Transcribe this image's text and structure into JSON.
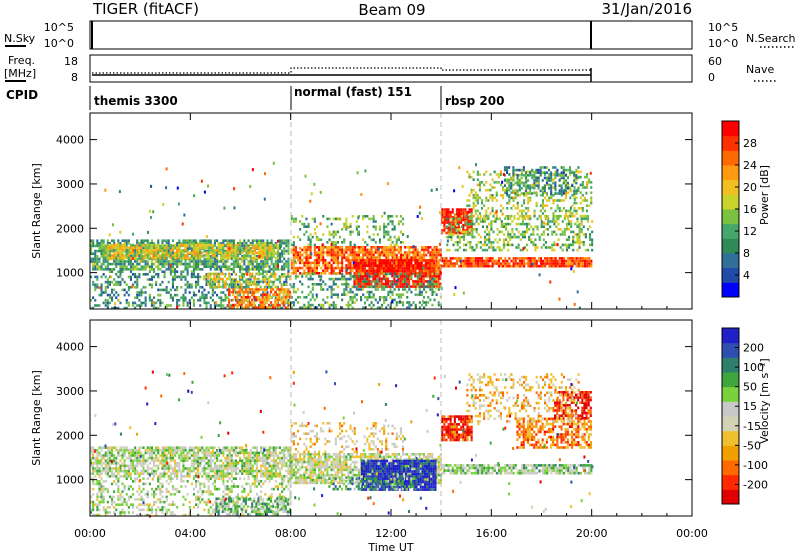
{
  "header": {
    "radar": "TIGER (fitACF)",
    "beam": "Beam 09",
    "date": "31/Jan/2016"
  },
  "strips": {
    "nsky_label": "N.Sky",
    "nsky_ticks": [
      "10^5",
      "10^0"
    ],
    "nsearch_label": "N.Search",
    "nsearch_ticks": [
      "10^5",
      "10^0"
    ],
    "freq_label_line1": "Freq.",
    "freq_label_line2": "[MHz]",
    "freq_ticks": [
      "18",
      "8"
    ],
    "nave_label": "Nave",
    "nave_ticks": [
      "60",
      "0"
    ],
    "cpid_label": "CPID"
  },
  "cpid_segments": [
    {
      "label": "themis 3300",
      "start_hour": 0
    },
    {
      "label": "normal (fast) 151",
      "start_hour": 8
    },
    {
      "label": "rbsp 200",
      "start_hour": 14
    }
  ],
  "x_axis": {
    "label": "Time UT",
    "ticks": [
      "00:00",
      "04:00",
      "08:00",
      "12:00",
      "16:00",
      "20:00",
      "00:00"
    ],
    "range_hours": [
      0,
      24
    ],
    "data_end_hour": 20
  },
  "colors": {
    "power": [
      "#0000ff",
      "#1f4aa8",
      "#2f6f99",
      "#2e8b57",
      "#44a86a",
      "#7ac142",
      "#c8d42a",
      "#f0c020",
      "#ff9a10",
      "#ff6a00",
      "#ff3000",
      "#ff0000"
    ],
    "velocity": [
      "#2020c8",
      "#2f4fb0",
      "#2f7f6f",
      "#3da63d",
      "#7ad23a",
      "#c8c8c8",
      "#d2d2b4",
      "#f0c030",
      "#f0a000",
      "#ff6a00",
      "#ff2a00",
      "#e00000"
    ]
  },
  "chart_data": [
    {
      "type": "heatmap",
      "name": "power-panel",
      "ylabel": "Slant Range [km]",
      "yticks": [
        "1000",
        "2000",
        "3000",
        "4000"
      ],
      "ylim": [
        180,
        4600
      ],
      "colorbar_label": "Power [dB]",
      "colorbar_ticks": [
        "4",
        "8",
        "12",
        "16",
        "20",
        "24",
        "28"
      ],
      "colorbar_range": [
        0,
        32
      ],
      "regions": [
        {
          "t": [
            0.0,
            7.9
          ],
          "r": [
            1050,
            1750
          ],
          "level": 0.35,
          "dens": 0.75
        },
        {
          "t": [
            0.5,
            7.5
          ],
          "r": [
            1350,
            1650
          ],
          "level": 0.55,
          "dens": 0.8
        },
        {
          "t": [
            0.0,
            8.0
          ],
          "r": [
            200,
            1050
          ],
          "level": 0.3,
          "dens": 0.35
        },
        {
          "t": [
            5.5,
            8.0
          ],
          "r": [
            200,
            650
          ],
          "level": 0.75,
          "dens": 0.7
        },
        {
          "t": [
            4.5,
            8.0
          ],
          "r": [
            700,
            1000
          ],
          "level": 0.55,
          "dens": 0.45
        },
        {
          "t": [
            8.0,
            14.0
          ],
          "r": [
            1000,
            1600
          ],
          "level": 0.8,
          "dens": 0.8
        },
        {
          "t": [
            10.5,
            14.0
          ],
          "r": [
            700,
            1300
          ],
          "level": 0.95,
          "dens": 0.85
        },
        {
          "t": [
            8.0,
            14.0
          ],
          "r": [
            200,
            1000
          ],
          "level": 0.35,
          "dens": 0.35
        },
        {
          "t": [
            8.0,
            12.5
          ],
          "r": [
            1600,
            2300
          ],
          "level": 0.4,
          "dens": 0.25
        },
        {
          "t": [
            14.0,
            20.0
          ],
          "r": [
            1150,
            1350
          ],
          "level": 0.85,
          "dens": 0.9
        },
        {
          "t": [
            14.0,
            15.2
          ],
          "r": [
            1900,
            2450
          ],
          "level": 0.97,
          "dens": 0.9
        },
        {
          "t": [
            14.2,
            20.0
          ],
          "r": [
            1500,
            2300
          ],
          "level": 0.45,
          "dens": 0.4
        },
        {
          "t": [
            15.0,
            20.0
          ],
          "r": [
            2200,
            3300
          ],
          "level": 0.5,
          "dens": 0.35
        },
        {
          "t": [
            16.5,
            19.5
          ],
          "r": [
            2800,
            3400
          ],
          "level": 0.3,
          "dens": 0.45
        }
      ]
    },
    {
      "type": "heatmap",
      "name": "velocity-panel",
      "ylabel": "Slant Range [km]",
      "yticks": [
        "1000",
        "2000",
        "3000",
        "4000"
      ],
      "ylim": [
        180,
        4600
      ],
      "colorbar_label": "Velocity [m s⁻¹]",
      "colorbar_ticks": [
        "200",
        "100",
        "50",
        "15",
        "-15",
        "-50",
        "-100",
        "-200"
      ],
      "colorbar_range": [
        -250,
        250
      ],
      "regions": [
        {
          "t": [
            0.0,
            8.0
          ],
          "r": [
            1050,
            1750
          ],
          "level": 0.45,
          "dens": 0.75
        },
        {
          "t": [
            0.0,
            8.0
          ],
          "r": [
            200,
            1050
          ],
          "level": 0.45,
          "dens": 0.35
        },
        {
          "t": [
            5.0,
            8.0
          ],
          "r": [
            200,
            600
          ],
          "level": 0.35,
          "dens": 0.55
        },
        {
          "t": [
            8.0,
            14.0
          ],
          "r": [
            900,
            1600
          ],
          "level": 0.48,
          "dens": 0.8
        },
        {
          "t": [
            10.8,
            13.8
          ],
          "r": [
            800,
            1450
          ],
          "level": 0.05,
          "dens": 0.9
        },
        {
          "t": [
            9.5,
            13.0
          ],
          "r": [
            800,
            1050
          ],
          "level": 0.3,
          "dens": 0.5
        },
        {
          "t": [
            8.0,
            12.5
          ],
          "r": [
            1600,
            2300
          ],
          "level": 0.6,
          "dens": 0.25
        },
        {
          "t": [
            14.0,
            20.0
          ],
          "r": [
            1150,
            1350
          ],
          "level": 0.4,
          "dens": 0.8
        },
        {
          "t": [
            14.0,
            15.2
          ],
          "r": [
            1900,
            2450
          ],
          "level": 0.9,
          "dens": 0.85
        },
        {
          "t": [
            17.0,
            20.0
          ],
          "r": [
            1700,
            2400
          ],
          "level": 0.75,
          "dens": 0.6
        },
        {
          "t": [
            18.5,
            20.0
          ],
          "r": [
            2400,
            3000
          ],
          "level": 0.95,
          "dens": 0.7
        },
        {
          "t": [
            15.0,
            19.5
          ],
          "r": [
            2300,
            3400
          ],
          "level": 0.65,
          "dens": 0.3
        }
      ]
    }
  ]
}
